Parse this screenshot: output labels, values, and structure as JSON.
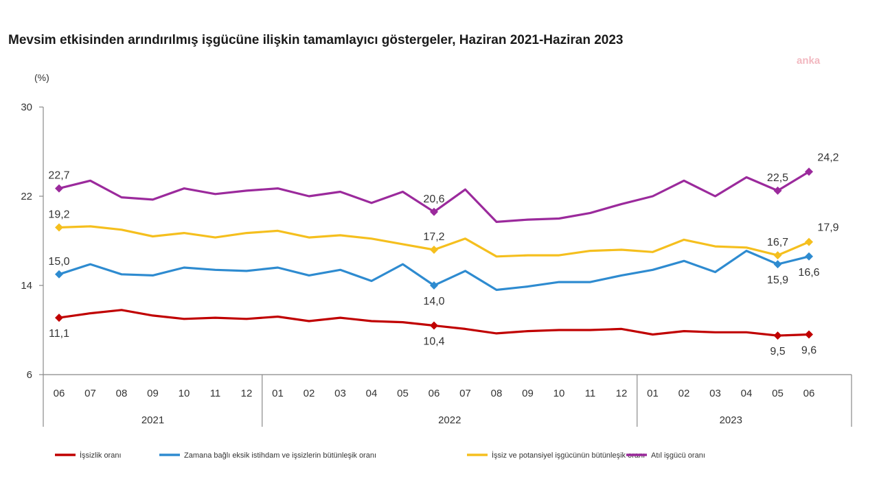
{
  "chart_data": {
    "type": "line",
    "title": "Mevsim etkisinden arındırılmış işgücüne ilişkin tamamlayıcı göstergeler, Haziran 2021-Haziran 2023",
    "watermark": "anka",
    "ylabel": "(%)",
    "ylim": [
      6,
      30
    ],
    "yticks": [
      "6",
      "14",
      "22",
      "30"
    ],
    "months": [
      "06",
      "07",
      "08",
      "09",
      "10",
      "11",
      "12",
      "01",
      "02",
      "03",
      "04",
      "05",
      "06",
      "07",
      "08",
      "09",
      "10",
      "11",
      "12",
      "01",
      "02",
      "03",
      "04",
      "05",
      "06"
    ],
    "years": [
      {
        "label": "2021",
        "start": 0,
        "end": 6
      },
      {
        "label": "2022",
        "start": 7,
        "end": 18
      },
      {
        "label": "2023",
        "start": 19,
        "end": 24
      }
    ],
    "series": [
      {
        "name": "İşsizlik oranı",
        "color": "#c00000",
        "values": [
          11.1,
          11.5,
          11.8,
          11.3,
          11.0,
          11.1,
          11.0,
          11.2,
          10.8,
          11.1,
          10.8,
          10.7,
          10.4,
          10.1,
          9.7,
          9.9,
          10.0,
          10.0,
          10.1,
          9.6,
          9.9,
          9.8,
          9.8,
          9.5,
          9.6
        ],
        "labels": [
          {
            "i": 0,
            "text": "11,1",
            "pos": "below"
          },
          {
            "i": 12,
            "text": "10,4",
            "pos": "below"
          },
          {
            "i": 23,
            "text": "9,5",
            "pos": "below"
          },
          {
            "i": 24,
            "text": "9,6",
            "pos": "below"
          }
        ],
        "markers": [
          0,
          12,
          23,
          24
        ]
      },
      {
        "name": "Zamana bağlı eksik istihdam ve işsizlerin bütünleşik oranı",
        "color": "#2e8bd0",
        "values": [
          15.0,
          15.9,
          15.0,
          14.9,
          15.6,
          15.4,
          15.3,
          15.6,
          14.9,
          15.4,
          14.4,
          15.9,
          14.0,
          15.3,
          13.6,
          13.9,
          14.3,
          14.3,
          14.9,
          15.4,
          16.2,
          15.2,
          17.1,
          15.9,
          16.6
        ],
        "labels": [
          {
            "i": 0,
            "text": "15,0",
            "pos": "above"
          },
          {
            "i": 12,
            "text": "14,0",
            "pos": "below"
          },
          {
            "i": 23,
            "text": "15,9",
            "pos": "below"
          },
          {
            "i": 24,
            "text": "16,6",
            "pos": "below"
          }
        ],
        "markers": [
          0,
          12,
          23,
          24
        ]
      },
      {
        "name": "İşsiz ve potansiyel işgücünün bütünleşik oranı",
        "color": "#f5bf1e",
        "values": [
          19.2,
          19.3,
          19.0,
          18.4,
          18.7,
          18.3,
          18.7,
          18.9,
          18.3,
          18.5,
          18.2,
          17.7,
          17.2,
          18.2,
          16.6,
          16.7,
          16.7,
          17.1,
          17.2,
          17.0,
          18.1,
          17.5,
          17.4,
          16.7,
          17.9
        ],
        "labels": [
          {
            "i": 0,
            "text": "19,2",
            "pos": "above"
          },
          {
            "i": 12,
            "text": "17,2",
            "pos": "above"
          },
          {
            "i": 23,
            "text": "16,7",
            "pos": "above"
          },
          {
            "i": 24,
            "text": "17,9",
            "pos": "upright"
          }
        ],
        "markers": [
          0,
          12,
          23,
          24
        ]
      },
      {
        "name": "Atıl işgücü oranı",
        "color": "#9b2a9c",
        "values": [
          22.7,
          23.4,
          21.9,
          21.7,
          22.7,
          22.2,
          22.5,
          22.7,
          22.0,
          22.4,
          21.4,
          22.4,
          20.6,
          22.6,
          19.7,
          19.9,
          20.0,
          20.5,
          21.3,
          22.0,
          23.4,
          22.0,
          23.7,
          22.5,
          24.2
        ],
        "labels": [
          {
            "i": 0,
            "text": "22,7",
            "pos": "above"
          },
          {
            "i": 12,
            "text": "20,6",
            "pos": "above"
          },
          {
            "i": 23,
            "text": "22,5",
            "pos": "above"
          },
          {
            "i": 24,
            "text": "24,2",
            "pos": "upright"
          }
        ],
        "markers": [
          0,
          12,
          23,
          24
        ]
      }
    ],
    "legend_position": "bottom"
  }
}
